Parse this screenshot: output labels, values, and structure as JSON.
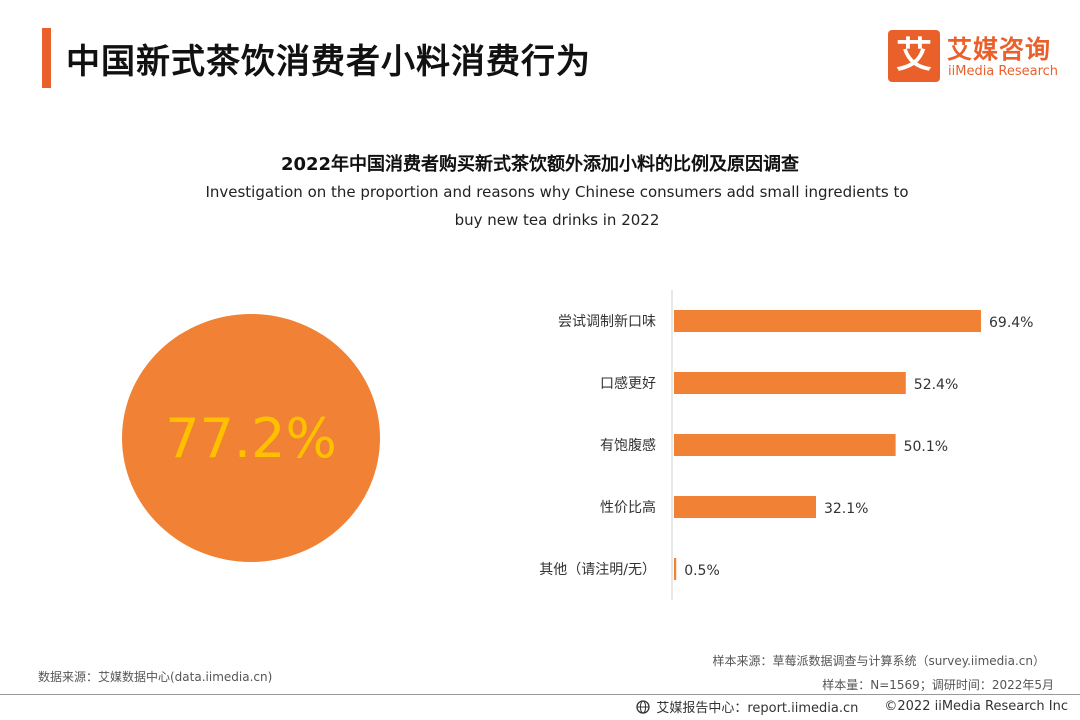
{
  "header": {
    "title": "中国新式茶饮消费者小料消费行为"
  },
  "logo": {
    "mark": "艾",
    "name_cn": "艾媒咨询",
    "name_en": "iiMedia Research",
    "color": "#e9602b"
  },
  "chart_data": [
    {
      "type": "pie",
      "title": "2022年中国消费者购买新式茶饮额外添加小料的比例及原因调查",
      "subtitle_line1": "Investigation on the proportion and reasons why Chinese consumers add small ingredients to",
      "subtitle_line2": "buy new tea drinks in 2022",
      "center_label": "77.2%",
      "values": [
        77.2
      ],
      "color": "#f08135",
      "label_color": "#ffc000"
    },
    {
      "type": "bar",
      "orientation": "horizontal",
      "categories": [
        "尝试调制新口味",
        "口感更好",
        "有饱腹感",
        "性价比高",
        "其他（请注明/无）"
      ],
      "values": [
        69.4,
        52.4,
        50.1,
        32.1,
        0.5
      ],
      "value_labels": [
        "69.4%",
        "52.4%",
        "50.1%",
        "32.1%",
        "0.5%"
      ],
      "xlim": [
        0,
        69.4
      ],
      "color": "#f08135"
    }
  ],
  "footer": {
    "data_source": "数据来源：艾媒数据中心(data.iimedia.cn)",
    "sample_source": "样本来源：草莓派数据调查与计算系统（survey.iimedia.cn）",
    "sample_info": "样本量：N=1569；调研时间：2022年5月",
    "report_center": "艾媒报告中心：report.iimedia.cn",
    "copyright": "©2022  iiMedia Research  Inc"
  }
}
